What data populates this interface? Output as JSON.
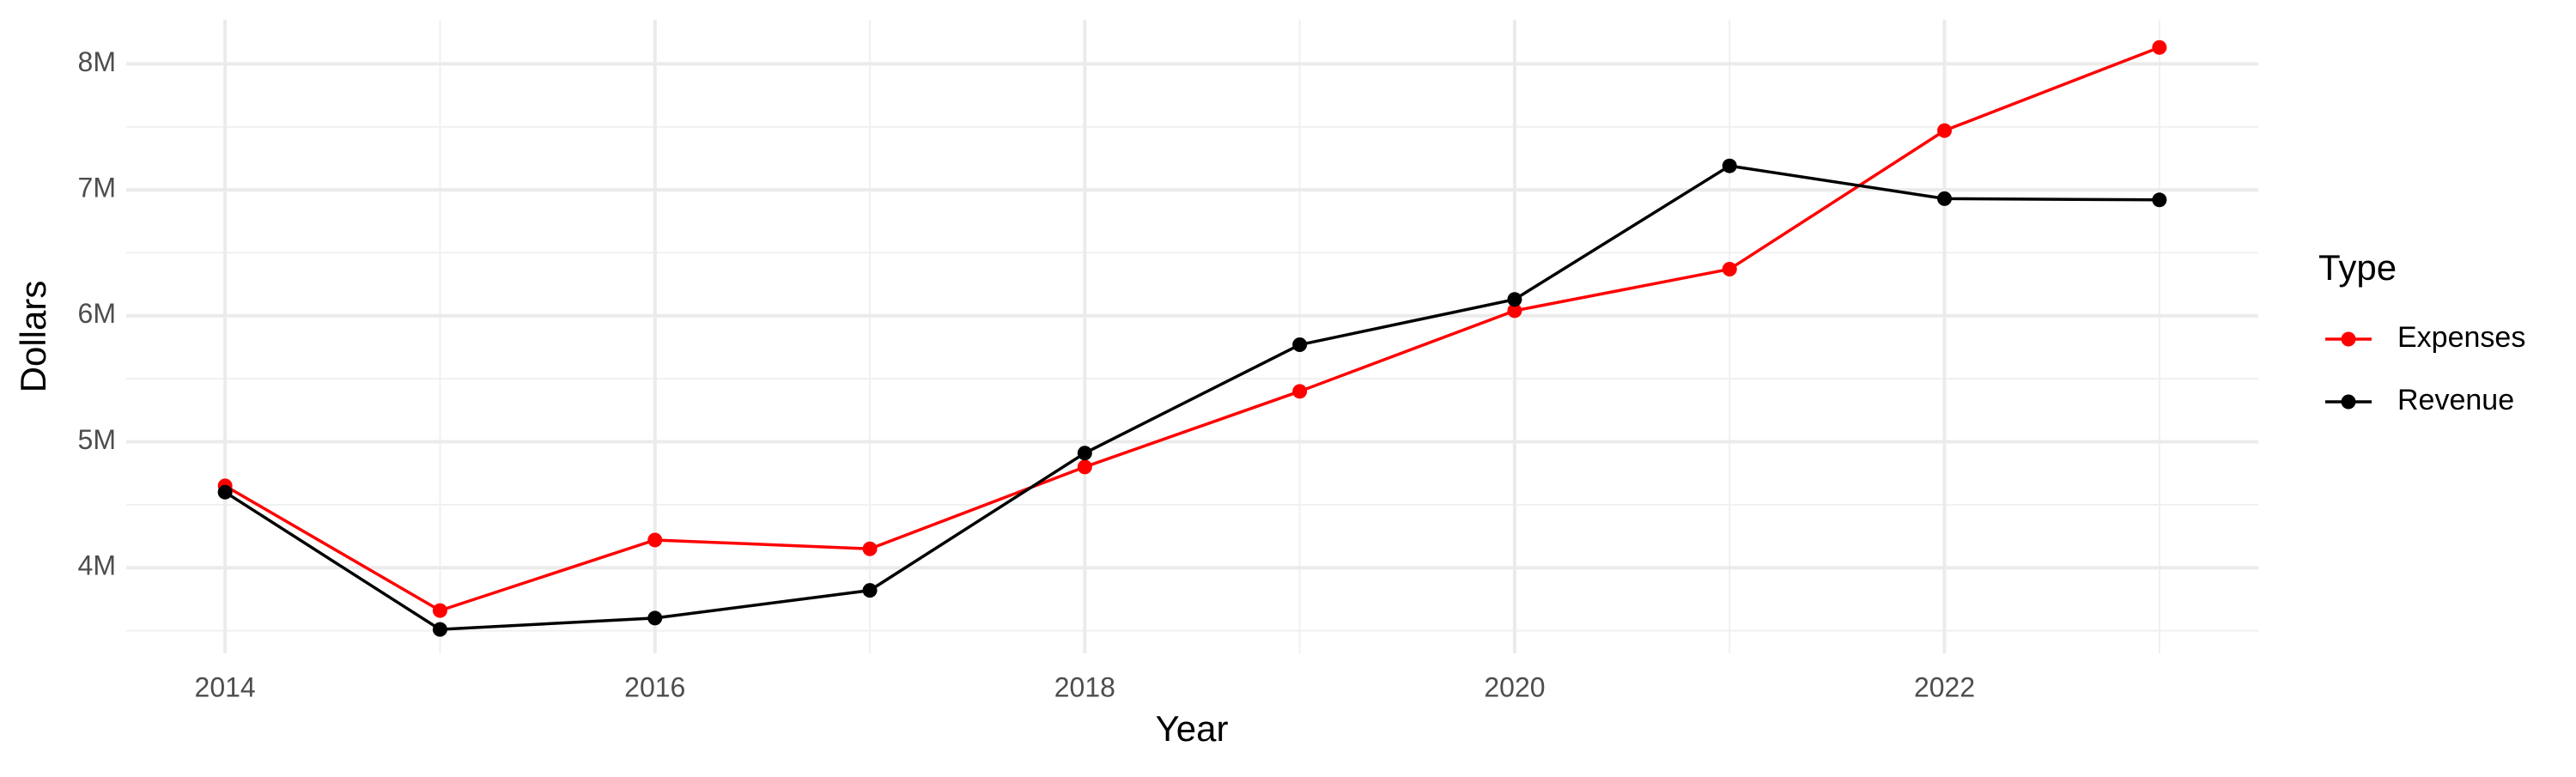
{
  "chart_data": {
    "type": "line",
    "x_label": "Year",
    "y_label": "Dollars",
    "legend_title": "Type",
    "x": [
      2014,
      2015,
      2016,
      2017,
      2018,
      2019,
      2020,
      2021,
      2022,
      2023
    ],
    "series": [
      {
        "name": "Expenses",
        "color": "#ff0000",
        "values": [
          4650000,
          3660000,
          4220000,
          4150000,
          4800000,
          5400000,
          6040000,
          6370000,
          7470000,
          8130000
        ]
      },
      {
        "name": "Revenue",
        "color": "#000000",
        "values": [
          4600000,
          3510000,
          3600000,
          3820000,
          4910000,
          5770000,
          6130000,
          7190000,
          6930000,
          6920000
        ]
      }
    ],
    "xlim": [
      2013.54,
      2023.46
    ],
    "xticks": [
      2014,
      2016,
      2018,
      2020,
      2022
    ],
    "ylim": [
      3320000,
      8350000
    ],
    "yticks": [
      {
        "value": 4000000,
        "label": "4M"
      },
      {
        "value": 5000000,
        "label": "5M"
      },
      {
        "value": 6000000,
        "label": "6M"
      },
      {
        "value": 7000000,
        "label": "7M"
      },
      {
        "value": 8000000,
        "label": "8M"
      }
    ],
    "grid": true,
    "legend": "right"
  }
}
